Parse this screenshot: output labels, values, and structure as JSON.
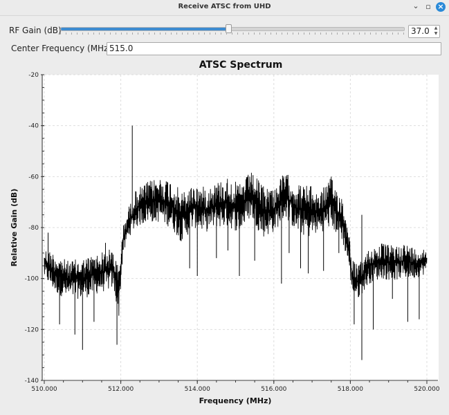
{
  "window": {
    "title": "Receive ATSC from UHD",
    "minimize_glyph": "⌄",
    "maximize_glyph": "▫",
    "close_glyph": "×"
  },
  "rf_gain": {
    "label": "RF Gain (dB)",
    "value": "37.0",
    "slider_fraction": 0.49,
    "spin_up": "▲",
    "spin_down": "▼"
  },
  "center_freq": {
    "label": "Center Frequency (MHz):",
    "value": "515.0"
  },
  "colors": {
    "accent": "#3d8bd0",
    "trace": "#000000",
    "grid": "#dddddd"
  },
  "chart_data": {
    "type": "line",
    "title": "ATSC Spectrum",
    "xlabel": "Frequency (MHz)",
    "ylabel": "Relative Gain (dB)",
    "xlim": [
      510.0,
      520.0
    ],
    "ylim": [
      -140,
      -20
    ],
    "x_ticks": [
      "510.000",
      "512.000",
      "514.000",
      "516.000",
      "518.000",
      "520.000"
    ],
    "y_ticks": [
      "-20",
      "-40",
      "-60",
      "-80",
      "-100",
      "-120",
      "-140"
    ],
    "grid": true,
    "series": [
      {
        "envelope_x": [
          510.0,
          510.3,
          510.6,
          511.0,
          511.4,
          511.8,
          511.95,
          512.05,
          512.2,
          512.4,
          512.7,
          513.0,
          513.3,
          513.6,
          513.9,
          514.2,
          514.5,
          514.8,
          515.1,
          515.4,
          515.7,
          516.0,
          516.3,
          516.6,
          516.9,
          517.2,
          517.5,
          517.8,
          517.95,
          518.05,
          518.2,
          518.5,
          518.8,
          519.1,
          519.4,
          519.7,
          520.0
        ],
        "envelope_top": [
          -88,
          -90,
          -93,
          -92,
          -90,
          -88,
          -96,
          -80,
          -72,
          -65,
          -62,
          -60,
          -61,
          -66,
          -63,
          -64,
          -62,
          -60,
          -63,
          -58,
          -63,
          -64,
          -58,
          -63,
          -63,
          -66,
          -60,
          -68,
          -80,
          -92,
          -95,
          -88,
          -86,
          -87,
          -86,
          -88,
          -88
        ],
        "envelope_bottom": [
          -100,
          -106,
          -108,
          -108,
          -106,
          -104,
          -115,
          -92,
          -84,
          -80,
          -78,
          -78,
          -80,
          -86,
          -80,
          -82,
          -80,
          -80,
          -82,
          -76,
          -84,
          -82,
          -76,
          -82,
          -84,
          -82,
          -80,
          -86,
          -95,
          -106,
          -108,
          -102,
          -100,
          -101,
          -100,
          -100,
          -98
        ],
        "spikes": [
          [
            510.1,
            -82
          ],
          [
            510.4,
            -118
          ],
          [
            510.8,
            -122
          ],
          [
            511.0,
            -128
          ],
          [
            511.3,
            -117
          ],
          [
            511.6,
            -86
          ],
          [
            511.9,
            -126
          ],
          [
            512.3,
            -40
          ],
          [
            512.6,
            -72
          ],
          [
            512.9,
            -76
          ],
          [
            513.4,
            -80
          ],
          [
            513.8,
            -96
          ],
          [
            514.0,
            -99
          ],
          [
            514.5,
            -92
          ],
          [
            514.8,
            -89
          ],
          [
            515.1,
            -99
          ],
          [
            515.5,
            -93
          ],
          [
            516.2,
            -102
          ],
          [
            516.4,
            -90
          ],
          [
            516.7,
            -96
          ],
          [
            516.9,
            -98
          ],
          [
            517.3,
            -97
          ],
          [
            517.7,
            -90
          ],
          [
            518.1,
            -118
          ],
          [
            518.3,
            -132
          ],
          [
            518.3,
            -75
          ],
          [
            518.6,
            -120
          ],
          [
            519.1,
            -108
          ],
          [
            519.5,
            -117
          ],
          [
            519.8,
            -116
          ]
        ]
      }
    ]
  }
}
